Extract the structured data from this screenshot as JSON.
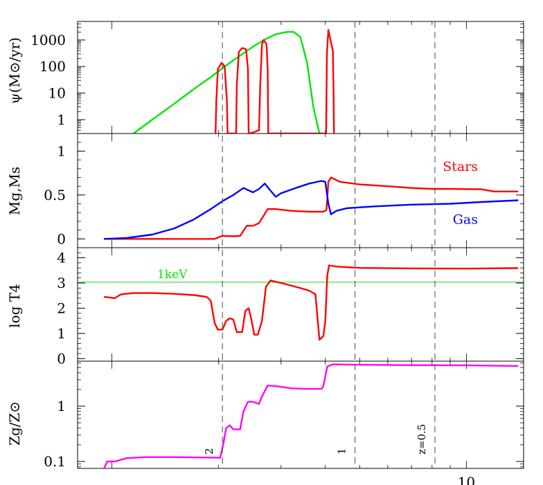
{
  "figure": {
    "x_axis": {
      "scale": "log",
      "range_gyr": [
        0.8,
        14.5
      ],
      "tick_labels": [
        {
          "value": 10,
          "label": "10"
        }
      ]
    },
    "redshift_markers": [
      {
        "t": 2.05,
        "label": "2"
      },
      {
        "t": 4.85,
        "label": "1"
      },
      {
        "t": 8.15,
        "label": "z=0.5"
      }
    ]
  },
  "chart_data": [
    {
      "type": "line",
      "panel": "star-formation-rate",
      "ylabel": "ψ(M⊙/yr)",
      "yscale": "log",
      "ylim": [
        0.3,
        5000
      ],
      "ytick_labels": [
        {
          "value": 1000,
          "label": "1000"
        },
        {
          "value": 100,
          "label": "100"
        },
        {
          "value": 10,
          "label": "10"
        },
        {
          "value": 1,
          "label": "1"
        }
      ],
      "series": [
        {
          "color": "#00e600",
          "points": [
            [
              1.15,
              0.3
            ],
            [
              1.3,
              1.0
            ],
            [
              1.5,
              4
            ],
            [
              1.7,
              14
            ],
            [
              1.9,
              40
            ],
            [
              2.1,
              110
            ],
            [
              2.3,
              260
            ],
            [
              2.5,
              560
            ],
            [
              2.7,
              1050
            ],
            [
              2.9,
              1650
            ],
            [
              3.1,
              2000
            ],
            [
              3.25,
              2050
            ],
            [
              3.4,
              1300
            ],
            [
              3.55,
              150
            ],
            [
              3.7,
              3
            ],
            [
              3.85,
              0.3
            ]
          ]
        },
        {
          "color": "#ff0000",
          "points": [
            [
              1.96,
              0.3
            ],
            [
              1.97,
              5
            ],
            [
              1.99,
              80
            ],
            [
              2.04,
              140
            ],
            [
              2.08,
              100
            ],
            [
              2.11,
              5
            ],
            [
              2.12,
              0.3
            ],
            [
              2.24,
              0.3
            ],
            [
              2.25,
              20
            ],
            [
              2.28,
              350
            ],
            [
              2.33,
              500
            ],
            [
              2.39,
              450
            ],
            [
              2.42,
              80
            ],
            [
              2.43,
              0.3
            ],
            [
              2.45,
              0.3
            ],
            [
              2.6,
              0.4
            ],
            [
              2.62,
              20
            ],
            [
              2.65,
              700
            ],
            [
              2.68,
              1000
            ],
            [
              2.73,
              700
            ],
            [
              2.75,
              80
            ],
            [
              2.76,
              0.3
            ],
            [
              3.85,
              0.3
            ],
            [
              4.02,
              0.3
            ],
            [
              4.04,
              300
            ],
            [
              4.08,
              2400
            ],
            [
              4.15,
              800
            ],
            [
              4.2,
              400
            ],
            [
              4.22,
              10
            ],
            [
              4.23,
              0.3
            ]
          ]
        }
      ]
    },
    {
      "type": "line",
      "panel": "mass-fractions",
      "ylabel": "Mg,Ms",
      "ylim": [
        -0.1,
        1.2
      ],
      "ytick_labels": [
        {
          "value": 1,
          "label": "1"
        },
        {
          "value": 0.5,
          "label": "0.5"
        },
        {
          "value": 0,
          "label": "0"
        }
      ],
      "series": [
        {
          "name": "Stars",
          "color": "#ff0000",
          "points": [
            [
              0.95,
              0.0
            ],
            [
              1.6,
              0.0
            ],
            [
              1.95,
              0.0
            ],
            [
              2.05,
              0.035
            ],
            [
              2.2,
              0.03
            ],
            [
              2.3,
              0.035
            ],
            [
              2.4,
              0.15
            ],
            [
              2.5,
              0.15
            ],
            [
              2.6,
              0.18
            ],
            [
              2.75,
              0.34
            ],
            [
              2.9,
              0.34
            ],
            [
              3.2,
              0.32
            ],
            [
              3.6,
              0.31
            ],
            [
              3.95,
              0.31
            ],
            [
              4.03,
              0.33
            ],
            [
              4.08,
              0.65
            ],
            [
              4.15,
              0.7
            ],
            [
              4.4,
              0.65
            ],
            [
              5.0,
              0.62
            ],
            [
              6.0,
              0.6
            ],
            [
              7.0,
              0.58
            ],
            [
              8.0,
              0.57
            ],
            [
              9.0,
              0.57
            ],
            [
              11.0,
              0.565
            ],
            [
              12.0,
              0.54
            ],
            [
              14.0,
              0.54
            ]
          ]
        },
        {
          "name": "Gas",
          "color": "#0000ff",
          "points": [
            [
              0.95,
              0.0
            ],
            [
              1.1,
              0.01
            ],
            [
              1.3,
              0.05
            ],
            [
              1.5,
              0.12
            ],
            [
              1.7,
              0.22
            ],
            [
              1.9,
              0.34
            ],
            [
              2.05,
              0.43
            ],
            [
              2.2,
              0.5
            ],
            [
              2.35,
              0.58
            ],
            [
              2.5,
              0.53
            ],
            [
              2.6,
              0.57
            ],
            [
              2.7,
              0.63
            ],
            [
              2.8,
              0.55
            ],
            [
              2.9,
              0.48
            ],
            [
              3.0,
              0.52
            ],
            [
              3.3,
              0.58
            ],
            [
              3.6,
              0.63
            ],
            [
              3.9,
              0.66
            ],
            [
              4.0,
              0.65
            ],
            [
              4.08,
              0.4
            ],
            [
              4.15,
              0.28
            ],
            [
              4.3,
              0.32
            ],
            [
              4.6,
              0.35
            ],
            [
              5.5,
              0.37
            ],
            [
              7.0,
              0.39
            ],
            [
              9.0,
              0.4
            ],
            [
              11.0,
              0.42
            ],
            [
              14.0,
              0.44
            ]
          ]
        }
      ]
    },
    {
      "type": "line",
      "panel": "temperature",
      "ylabel": "log T4",
      "ylim": [
        -0.1,
        4.4
      ],
      "ytick_labels": [
        {
          "value": 4,
          "label": "4"
        },
        {
          "value": 3,
          "label": "3"
        },
        {
          "value": 2,
          "label": "2"
        },
        {
          "value": 1,
          "label": "1"
        },
        {
          "value": 0,
          "label": "0"
        }
      ],
      "reference_line": {
        "y": 3.03,
        "label": "1keV",
        "color": "#00e600"
      },
      "series": [
        {
          "color": "#ff0000",
          "points": [
            [
              0.95,
              2.45
            ],
            [
              1.02,
              2.4
            ],
            [
              1.06,
              2.55
            ],
            [
              1.15,
              2.6
            ],
            [
              1.3,
              2.6
            ],
            [
              1.5,
              2.57
            ],
            [
              1.7,
              2.52
            ],
            [
              1.85,
              2.45
            ],
            [
              1.9,
              2.3
            ],
            [
              1.95,
              1.4
            ],
            [
              1.99,
              1.15
            ],
            [
              2.05,
              1.15
            ],
            [
              2.1,
              1.5
            ],
            [
              2.15,
              1.6
            ],
            [
              2.2,
              1.55
            ],
            [
              2.25,
              1.05
            ],
            [
              2.33,
              1.05
            ],
            [
              2.38,
              1.9
            ],
            [
              2.43,
              2.0
            ],
            [
              2.47,
              1.6
            ],
            [
              2.52,
              0.95
            ],
            [
              2.58,
              0.95
            ],
            [
              2.65,
              1.5
            ],
            [
              2.72,
              2.85
            ],
            [
              2.8,
              3.1
            ],
            [
              3.0,
              3.0
            ],
            [
              3.3,
              2.85
            ],
            [
              3.6,
              2.7
            ],
            [
              3.75,
              2.55
            ],
            [
              3.85,
              0.75
            ],
            [
              3.95,
              0.9
            ],
            [
              4.0,
              1.5
            ],
            [
              4.05,
              3.3
            ],
            [
              4.1,
              3.7
            ],
            [
              4.3,
              3.65
            ],
            [
              5.0,
              3.6
            ],
            [
              7.0,
              3.58
            ],
            [
              10.0,
              3.57
            ],
            [
              14.0,
              3.59
            ]
          ]
        }
      ]
    },
    {
      "type": "line",
      "panel": "metallicity",
      "ylabel": "Zg/Z⊙",
      "yscale": "log",
      "ylim": [
        0.075,
        6.5
      ],
      "ytick_labels": [
        {
          "value": 1,
          "label": "1"
        },
        {
          "value": 0.1,
          "label": "0.1"
        }
      ],
      "series": [
        {
          "color": "#ff00ff",
          "points": [
            [
              0.95,
              0.075
            ],
            [
              0.97,
              0.1
            ],
            [
              1.02,
              0.1
            ],
            [
              1.1,
              0.115
            ],
            [
              1.25,
              0.12
            ],
            [
              1.5,
              0.12
            ],
            [
              1.8,
              0.118
            ],
            [
              2.02,
              0.117
            ],
            [
              2.06,
              0.2
            ],
            [
              2.1,
              0.4
            ],
            [
              2.15,
              0.45
            ],
            [
              2.2,
              0.38
            ],
            [
              2.3,
              0.38
            ],
            [
              2.35,
              0.8
            ],
            [
              2.42,
              1.2
            ],
            [
              2.5,
              1.2
            ],
            [
              2.6,
              1.1
            ],
            [
              2.65,
              1.5
            ],
            [
              2.75,
              2.35
            ],
            [
              2.9,
              2.3
            ],
            [
              3.2,
              2.1
            ],
            [
              3.5,
              2.05
            ],
            [
              3.9,
              2.05
            ],
            [
              3.95,
              2.3
            ],
            [
              4.05,
              5.2
            ],
            [
              4.2,
              5.7
            ],
            [
              5.0,
              5.6
            ],
            [
              7.0,
              5.5
            ],
            [
              10.0,
              5.45
            ],
            [
              14.0,
              5.3
            ]
          ]
        }
      ]
    }
  ]
}
